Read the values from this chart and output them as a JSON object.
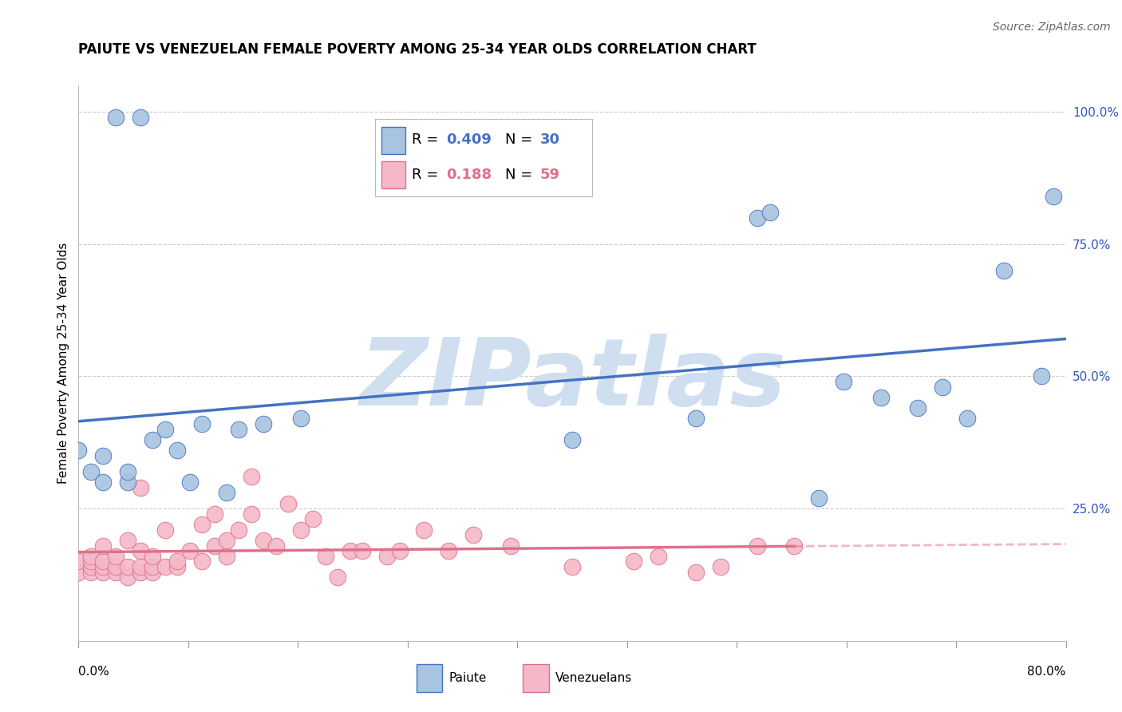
{
  "title": "PAIUTE VS VENEZUELAN FEMALE POVERTY AMONG 25-34 YEAR OLDS CORRELATION CHART",
  "source": "Source: ZipAtlas.com",
  "ylabel": "Female Poverty Among 25-34 Year Olds",
  "xmin": 0.0,
  "xmax": 0.8,
  "ymin": 0.0,
  "ymax": 1.05,
  "yticks": [
    0.0,
    0.25,
    0.5,
    0.75,
    1.0
  ],
  "ytick_labels": [
    "",
    "25.0%",
    "50.0%",
    "75.0%",
    "100.0%"
  ],
  "paiute_color": "#a8c4e0",
  "paiute_line_color": "#4472c4",
  "venezuelan_color": "#f4b8c8",
  "venezuelan_line_color": "#e0708a",
  "background_color": "#ffffff",
  "grid_color": "#cccccc",
  "watermark_color": "#d0dff0",
  "paiute_x": [
    0.03,
    0.05,
    0.0,
    0.01,
    0.02,
    0.02,
    0.06,
    0.07,
    0.08,
    0.1,
    0.13,
    0.15,
    0.18,
    0.04,
    0.04,
    0.09,
    0.12,
    0.55,
    0.56,
    0.62,
    0.65,
    0.7,
    0.72,
    0.75,
    0.78,
    0.79,
    0.6,
    0.68,
    0.4,
    0.5
  ],
  "paiute_y": [
    0.99,
    0.99,
    0.36,
    0.32,
    0.35,
    0.3,
    0.38,
    0.4,
    0.36,
    0.41,
    0.4,
    0.41,
    0.42,
    0.3,
    0.32,
    0.3,
    0.28,
    0.8,
    0.81,
    0.49,
    0.46,
    0.48,
    0.42,
    0.7,
    0.5,
    0.84,
    0.27,
    0.44,
    0.38,
    0.42
  ],
  "venezuelan_x": [
    0.0,
    0.0,
    0.01,
    0.01,
    0.01,
    0.01,
    0.02,
    0.02,
    0.02,
    0.02,
    0.03,
    0.03,
    0.03,
    0.04,
    0.04,
    0.04,
    0.05,
    0.05,
    0.05,
    0.05,
    0.06,
    0.06,
    0.06,
    0.07,
    0.07,
    0.08,
    0.08,
    0.09,
    0.1,
    0.1,
    0.11,
    0.11,
    0.12,
    0.12,
    0.13,
    0.14,
    0.14,
    0.15,
    0.16,
    0.17,
    0.18,
    0.19,
    0.2,
    0.21,
    0.22,
    0.23,
    0.25,
    0.26,
    0.28,
    0.3,
    0.32,
    0.35,
    0.4,
    0.45,
    0.47,
    0.5,
    0.52,
    0.55,
    0.58
  ],
  "venezuelan_y": [
    0.13,
    0.15,
    0.13,
    0.14,
    0.15,
    0.16,
    0.13,
    0.14,
    0.15,
    0.18,
    0.13,
    0.14,
    0.16,
    0.12,
    0.14,
    0.19,
    0.13,
    0.14,
    0.17,
    0.29,
    0.13,
    0.14,
    0.16,
    0.14,
    0.21,
    0.14,
    0.15,
    0.17,
    0.15,
    0.22,
    0.18,
    0.24,
    0.16,
    0.19,
    0.21,
    0.24,
    0.31,
    0.19,
    0.18,
    0.26,
    0.21,
    0.23,
    0.16,
    0.12,
    0.17,
    0.17,
    0.16,
    0.17,
    0.21,
    0.17,
    0.2,
    0.18,
    0.14,
    0.15,
    0.16,
    0.13,
    0.14,
    0.18,
    0.18
  ]
}
